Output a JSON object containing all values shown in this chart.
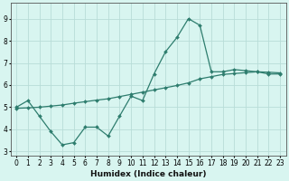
{
  "xlabel": "Humidex (Indice chaleur)",
  "xlim": [
    -0.5,
    23.5
  ],
  "ylim": [
    2.8,
    9.7
  ],
  "yticks": [
    3,
    4,
    5,
    6,
    7,
    8,
    9
  ],
  "xticks": [
    0,
    1,
    2,
    3,
    4,
    5,
    6,
    7,
    8,
    9,
    10,
    11,
    12,
    13,
    14,
    15,
    16,
    17,
    18,
    19,
    20,
    21,
    22,
    23
  ],
  "bg_color": "#d8f5f0",
  "grid_color": "#b8ddd8",
  "line_color": "#2e7d6e",
  "line1_x": [
    0,
    1,
    2,
    3,
    4,
    5,
    6,
    7,
    8,
    9,
    10,
    11,
    12,
    13,
    14,
    15,
    16,
    17,
    18,
    19,
    20,
    21,
    22,
    23
  ],
  "line1_y": [
    5.0,
    5.3,
    4.6,
    3.9,
    3.3,
    3.4,
    4.1,
    4.1,
    3.7,
    4.6,
    5.5,
    5.3,
    6.5,
    7.5,
    8.15,
    9.0,
    8.7,
    6.6,
    6.6,
    6.7,
    6.65,
    6.6,
    6.5,
    6.5
  ],
  "line2_x": [
    0,
    1,
    2,
    3,
    4,
    5,
    6,
    7,
    8,
    9,
    10,
    11,
    12,
    13,
    14,
    15,
    16,
    17,
    18,
    19,
    20,
    21,
    22,
    23
  ],
  "line2_y": [
    4.95,
    4.97,
    5.0,
    5.05,
    5.1,
    5.18,
    5.25,
    5.32,
    5.38,
    5.48,
    5.58,
    5.68,
    5.78,
    5.88,
    5.98,
    6.1,
    6.28,
    6.38,
    6.48,
    6.52,
    6.56,
    6.6,
    6.58,
    6.55
  ],
  "marker_size": 2.0,
  "linewidth": 0.9,
  "font_size_label": 6.5,
  "font_size_tick": 5.5
}
